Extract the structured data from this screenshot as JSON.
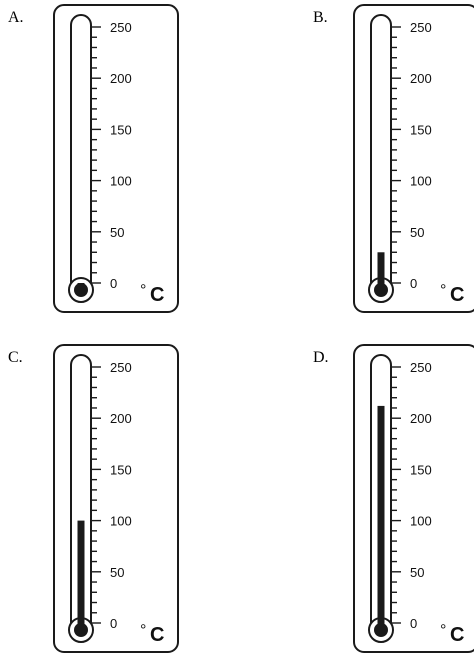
{
  "unit": {
    "degree": "°",
    "letter": "C"
  },
  "scale": {
    "min": 0,
    "max": 250,
    "labels": [
      "0",
      "50",
      "100",
      "150",
      "200",
      "250"
    ]
  },
  "thermometers": [
    {
      "option": "A.",
      "reading_celsius": 0
    },
    {
      "option": "B.",
      "reading_celsius": 30
    },
    {
      "option": "C.",
      "reading_celsius": 100
    },
    {
      "option": "D.",
      "reading_celsius": 212
    }
  ],
  "colors": {
    "stroke": "#1a1a1a",
    "fluid": "#1a1a1a",
    "background": "#ffffff"
  }
}
